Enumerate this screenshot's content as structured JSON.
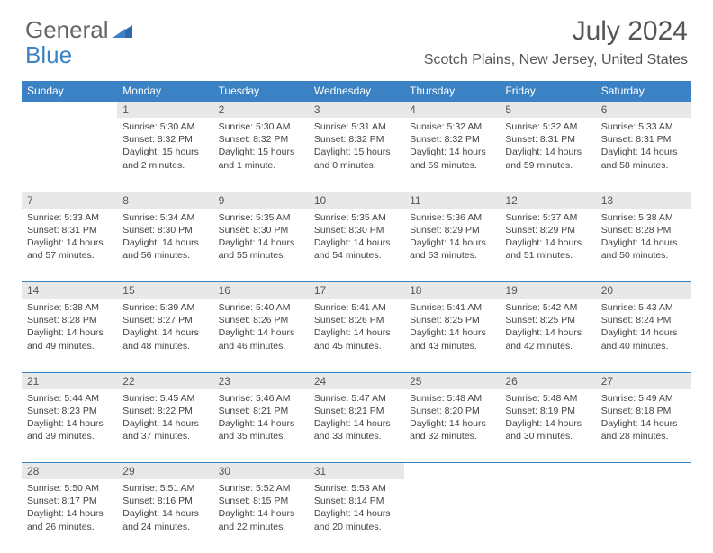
{
  "brand": {
    "part1": "General",
    "part2": "Blue"
  },
  "title": "July 2024",
  "location": "Scotch Plains, New Jersey, United States",
  "colors": {
    "header_bg": "#3b82c4",
    "header_text": "#ffffff",
    "daynum_bg": "#e8e8e8",
    "text": "#444444",
    "brand_gray": "#666666",
    "brand_blue": "#3b82c4"
  },
  "font": {
    "daynum_size": 12,
    "cell_size": 10.5,
    "title_size": 30,
    "location_size": 16
  },
  "weekdays": [
    "Sunday",
    "Monday",
    "Tuesday",
    "Wednesday",
    "Thursday",
    "Friday",
    "Saturday"
  ],
  "weeks": [
    [
      null,
      {
        "n": "1",
        "sr": "Sunrise: 5:30 AM",
        "ss": "Sunset: 8:32 PM",
        "d1": "Daylight: 15 hours",
        "d2": "and 2 minutes."
      },
      {
        "n": "2",
        "sr": "Sunrise: 5:30 AM",
        "ss": "Sunset: 8:32 PM",
        "d1": "Daylight: 15 hours",
        "d2": "and 1 minute."
      },
      {
        "n": "3",
        "sr": "Sunrise: 5:31 AM",
        "ss": "Sunset: 8:32 PM",
        "d1": "Daylight: 15 hours",
        "d2": "and 0 minutes."
      },
      {
        "n": "4",
        "sr": "Sunrise: 5:32 AM",
        "ss": "Sunset: 8:32 PM",
        "d1": "Daylight: 14 hours",
        "d2": "and 59 minutes."
      },
      {
        "n": "5",
        "sr": "Sunrise: 5:32 AM",
        "ss": "Sunset: 8:31 PM",
        "d1": "Daylight: 14 hours",
        "d2": "and 59 minutes."
      },
      {
        "n": "6",
        "sr": "Sunrise: 5:33 AM",
        "ss": "Sunset: 8:31 PM",
        "d1": "Daylight: 14 hours",
        "d2": "and 58 minutes."
      }
    ],
    [
      {
        "n": "7",
        "sr": "Sunrise: 5:33 AM",
        "ss": "Sunset: 8:31 PM",
        "d1": "Daylight: 14 hours",
        "d2": "and 57 minutes."
      },
      {
        "n": "8",
        "sr": "Sunrise: 5:34 AM",
        "ss": "Sunset: 8:30 PM",
        "d1": "Daylight: 14 hours",
        "d2": "and 56 minutes."
      },
      {
        "n": "9",
        "sr": "Sunrise: 5:35 AM",
        "ss": "Sunset: 8:30 PM",
        "d1": "Daylight: 14 hours",
        "d2": "and 55 minutes."
      },
      {
        "n": "10",
        "sr": "Sunrise: 5:35 AM",
        "ss": "Sunset: 8:30 PM",
        "d1": "Daylight: 14 hours",
        "d2": "and 54 minutes."
      },
      {
        "n": "11",
        "sr": "Sunrise: 5:36 AM",
        "ss": "Sunset: 8:29 PM",
        "d1": "Daylight: 14 hours",
        "d2": "and 53 minutes."
      },
      {
        "n": "12",
        "sr": "Sunrise: 5:37 AM",
        "ss": "Sunset: 8:29 PM",
        "d1": "Daylight: 14 hours",
        "d2": "and 51 minutes."
      },
      {
        "n": "13",
        "sr": "Sunrise: 5:38 AM",
        "ss": "Sunset: 8:28 PM",
        "d1": "Daylight: 14 hours",
        "d2": "and 50 minutes."
      }
    ],
    [
      {
        "n": "14",
        "sr": "Sunrise: 5:38 AM",
        "ss": "Sunset: 8:28 PM",
        "d1": "Daylight: 14 hours",
        "d2": "and 49 minutes."
      },
      {
        "n": "15",
        "sr": "Sunrise: 5:39 AM",
        "ss": "Sunset: 8:27 PM",
        "d1": "Daylight: 14 hours",
        "d2": "and 48 minutes."
      },
      {
        "n": "16",
        "sr": "Sunrise: 5:40 AM",
        "ss": "Sunset: 8:26 PM",
        "d1": "Daylight: 14 hours",
        "d2": "and 46 minutes."
      },
      {
        "n": "17",
        "sr": "Sunrise: 5:41 AM",
        "ss": "Sunset: 8:26 PM",
        "d1": "Daylight: 14 hours",
        "d2": "and 45 minutes."
      },
      {
        "n": "18",
        "sr": "Sunrise: 5:41 AM",
        "ss": "Sunset: 8:25 PM",
        "d1": "Daylight: 14 hours",
        "d2": "and 43 minutes."
      },
      {
        "n": "19",
        "sr": "Sunrise: 5:42 AM",
        "ss": "Sunset: 8:25 PM",
        "d1": "Daylight: 14 hours",
        "d2": "and 42 minutes."
      },
      {
        "n": "20",
        "sr": "Sunrise: 5:43 AM",
        "ss": "Sunset: 8:24 PM",
        "d1": "Daylight: 14 hours",
        "d2": "and 40 minutes."
      }
    ],
    [
      {
        "n": "21",
        "sr": "Sunrise: 5:44 AM",
        "ss": "Sunset: 8:23 PM",
        "d1": "Daylight: 14 hours",
        "d2": "and 39 minutes."
      },
      {
        "n": "22",
        "sr": "Sunrise: 5:45 AM",
        "ss": "Sunset: 8:22 PM",
        "d1": "Daylight: 14 hours",
        "d2": "and 37 minutes."
      },
      {
        "n": "23",
        "sr": "Sunrise: 5:46 AM",
        "ss": "Sunset: 8:21 PM",
        "d1": "Daylight: 14 hours",
        "d2": "and 35 minutes."
      },
      {
        "n": "24",
        "sr": "Sunrise: 5:47 AM",
        "ss": "Sunset: 8:21 PM",
        "d1": "Daylight: 14 hours",
        "d2": "and 33 minutes."
      },
      {
        "n": "25",
        "sr": "Sunrise: 5:48 AM",
        "ss": "Sunset: 8:20 PM",
        "d1": "Daylight: 14 hours",
        "d2": "and 32 minutes."
      },
      {
        "n": "26",
        "sr": "Sunrise: 5:48 AM",
        "ss": "Sunset: 8:19 PM",
        "d1": "Daylight: 14 hours",
        "d2": "and 30 minutes."
      },
      {
        "n": "27",
        "sr": "Sunrise: 5:49 AM",
        "ss": "Sunset: 8:18 PM",
        "d1": "Daylight: 14 hours",
        "d2": "and 28 minutes."
      }
    ],
    [
      {
        "n": "28",
        "sr": "Sunrise: 5:50 AM",
        "ss": "Sunset: 8:17 PM",
        "d1": "Daylight: 14 hours",
        "d2": "and 26 minutes."
      },
      {
        "n": "29",
        "sr": "Sunrise: 5:51 AM",
        "ss": "Sunset: 8:16 PM",
        "d1": "Daylight: 14 hours",
        "d2": "and 24 minutes."
      },
      {
        "n": "30",
        "sr": "Sunrise: 5:52 AM",
        "ss": "Sunset: 8:15 PM",
        "d1": "Daylight: 14 hours",
        "d2": "and 22 minutes."
      },
      {
        "n": "31",
        "sr": "Sunrise: 5:53 AM",
        "ss": "Sunset: 8:14 PM",
        "d1": "Daylight: 14 hours",
        "d2": "and 20 minutes."
      },
      null,
      null,
      null
    ]
  ]
}
